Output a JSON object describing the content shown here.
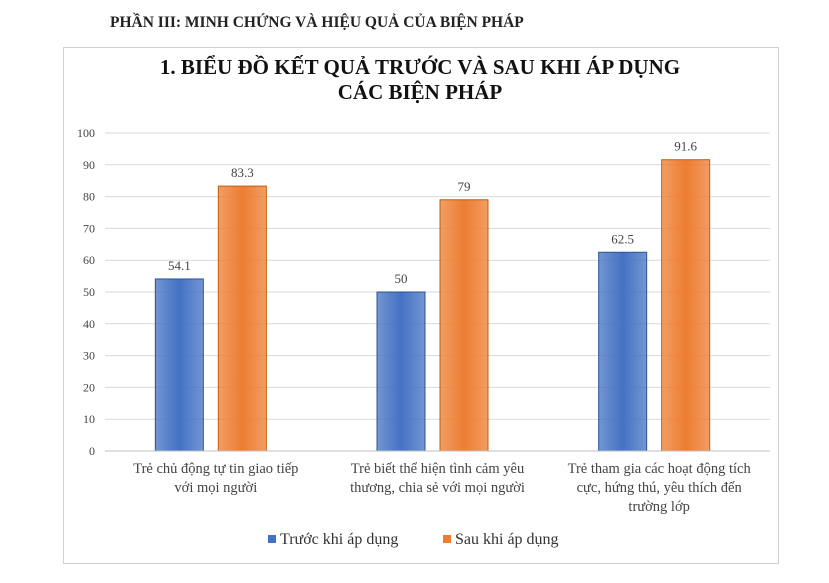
{
  "header": {
    "section_title": "PHẦN III: MINH CHỨNG VÀ HIỆU QUẢ CỦA BIỆN PHÁP"
  },
  "chart_data": {
    "type": "bar",
    "title": "1. BIỂU ĐỒ KẾT QUẢ TRƯỚC VÀ SAU KHI ÁP DỤNG CÁC BIỆN PHÁP",
    "title_lines": [
      "1. BIỂU ĐỒ KẾT QUẢ TRƯỚC VÀ SAU KHI ÁP DỤNG",
      "CÁC BIỆN PHÁP"
    ],
    "categories": [
      [
        "Trẻ chủ động tự tin giao tiếp",
        "với mọi người"
      ],
      [
        "Trẻ biết thể hiện tình cảm yêu",
        "thương, chia sẻ với mọi người"
      ],
      [
        "Trẻ tham gia các hoạt động tích",
        "cực, hứng thú, yêu thích đến",
        "trường lớp"
      ]
    ],
    "series": [
      {
        "name": "Trước khi áp dụng",
        "values": [
          54.1,
          50,
          62.5
        ],
        "labels": [
          "54.1",
          "50",
          "62.5"
        ],
        "color": "#4472C4"
      },
      {
        "name": "Sau khi áp dụng",
        "values": [
          83.3,
          79,
          91.6
        ],
        "labels": [
          "83.3",
          "79",
          "91.6"
        ],
        "color": "#ED7D31"
      }
    ],
    "ylim": [
      0,
      100
    ],
    "yticks": [
      "0",
      "10",
      "20",
      "30",
      "40",
      "50",
      "60",
      "70",
      "80",
      "90",
      "100"
    ],
    "grid": true,
    "legend": "bottom"
  }
}
